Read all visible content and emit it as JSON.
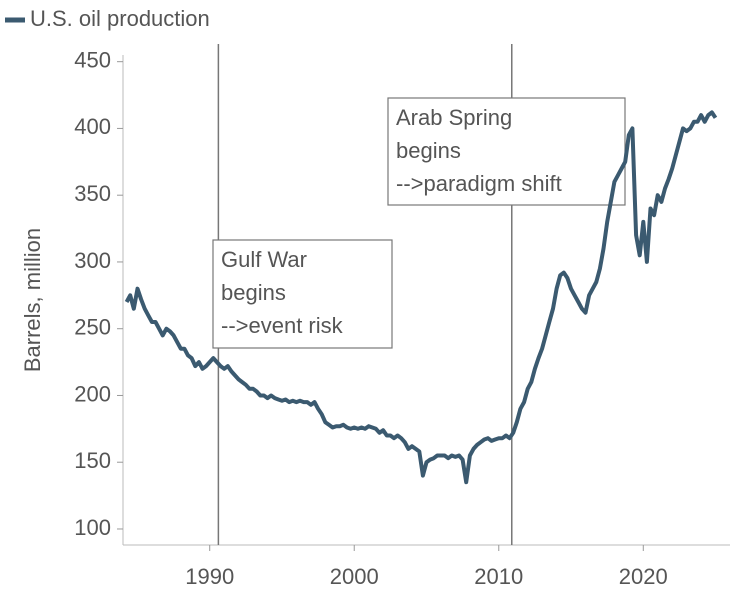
{
  "chart_data": {
    "type": "line",
    "y_label": "Barrels, million",
    "xlim": [
      1984,
      2026
    ],
    "xticks": [
      1990,
      2000,
      2010,
      2020
    ],
    "ylim": [
      88,
      455
    ],
    "yticks": [
      100,
      150,
      200,
      250,
      300,
      350,
      400,
      450
    ],
    "legend": "top-left",
    "x": [
      1984.25,
      1984.5,
      1984.75,
      1985,
      1985.25,
      1985.5,
      1985.75,
      1986,
      1986.25,
      1986.5,
      1986.75,
      1987,
      1987.25,
      1987.5,
      1987.75,
      1988,
      1988.25,
      1988.5,
      1988.75,
      1989,
      1989.25,
      1989.5,
      1989.75,
      1990,
      1990.25,
      1990.5,
      1990.75,
      1991,
      1991.25,
      1991.5,
      1991.75,
      1992,
      1992.25,
      1992.5,
      1992.75,
      1993,
      1993.25,
      1993.5,
      1993.75,
      1994,
      1994.25,
      1994.5,
      1994.75,
      1995,
      1995.25,
      1995.5,
      1995.75,
      1996,
      1996.25,
      1996.5,
      1996.75,
      1997,
      1997.25,
      1997.5,
      1997.75,
      1998,
      1998.25,
      1998.5,
      1998.75,
      1999,
      1999.25,
      1999.5,
      1999.75,
      2000,
      2000.25,
      2000.5,
      2000.75,
      2001,
      2001.25,
      2001.5,
      2001.75,
      2002,
      2002.25,
      2002.5,
      2002.75,
      2003,
      2003.25,
      2003.5,
      2003.75,
      2004,
      2004.25,
      2004.5,
      2004.75,
      2005,
      2005.25,
      2005.5,
      2005.75,
      2006,
      2006.25,
      2006.5,
      2006.75,
      2007,
      2007.25,
      2007.5,
      2007.75,
      2008,
      2008.25,
      2008.5,
      2008.75,
      2009,
      2009.25,
      2009.5,
      2009.75,
      2010,
      2010.25,
      2010.5,
      2010.75,
      2011,
      2011.25,
      2011.5,
      2011.75,
      2012,
      2012.25,
      2012.5,
      2012.75,
      2013,
      2013.25,
      2013.5,
      2013.75,
      2014,
      2014.25,
      2014.5,
      2014.75,
      2015,
      2015.25,
      2015.5,
      2015.75,
      2016,
      2016.25,
      2016.5,
      2016.75,
      2017,
      2017.25,
      2017.5,
      2017.75,
      2018,
      2018.25,
      2018.5,
      2018.75,
      2019,
      2019.25,
      2019.5,
      2019.75,
      2020,
      2020.25,
      2020.5,
      2020.75,
      2021,
      2021.25,
      2021.5,
      2021.75,
      2022,
      2022.25,
      2022.5,
      2022.75,
      2023,
      2023.25,
      2023.5,
      2023.75,
      2024,
      2024.25,
      2024.5,
      2024.75,
      2025
    ],
    "series": [
      {
        "name": "U.S. oil production",
        "color": "#3b5a70",
        "values": [
          270,
          275,
          265,
          280,
          272,
          265,
          260,
          255,
          255,
          250,
          245,
          250,
          248,
          245,
          240,
          235,
          235,
          230,
          228,
          222,
          225,
          220,
          222,
          225,
          228,
          225,
          222,
          220,
          222,
          218,
          215,
          212,
          210,
          208,
          205,
          205,
          203,
          200,
          200,
          198,
          200,
          198,
          197,
          196,
          197,
          195,
          196,
          195,
          196,
          195,
          195,
          193,
          195,
          190,
          186,
          180,
          178,
          176,
          177,
          177,
          178,
          176,
          175,
          176,
          175,
          176,
          175,
          177,
          176,
          175,
          172,
          174,
          170,
          170,
          168,
          170,
          168,
          165,
          160,
          162,
          160,
          158,
          140,
          150,
          152,
          153,
          155,
          155,
          155,
          153,
          155,
          154,
          155,
          152,
          135,
          155,
          160,
          163,
          165,
          167,
          168,
          166,
          167,
          168,
          168,
          170,
          168,
          172,
          180,
          190,
          195,
          205,
          210,
          220,
          228,
          235,
          245,
          255,
          265,
          280,
          290,
          292,
          288,
          280,
          275,
          270,
          265,
          262,
          275,
          280,
          285,
          295,
          310,
          330,
          345,
          360,
          365,
          370,
          375,
          395,
          400,
          320,
          305,
          330,
          300,
          340,
          335,
          350,
          345,
          355,
          362,
          370,
          380,
          390,
          400,
          398,
          400,
          405,
          405,
          410,
          405,
          410,
          412,
          408
        ]
      }
    ],
    "annotations": [
      {
        "x": 1990.6,
        "lines": [
          "Gulf War",
          "begins",
          "-->event risk"
        ]
      },
      {
        "x": 2010.9,
        "lines": [
          "Arab Spring",
          "begins",
          "-->paradigm shift"
        ]
      }
    ]
  }
}
